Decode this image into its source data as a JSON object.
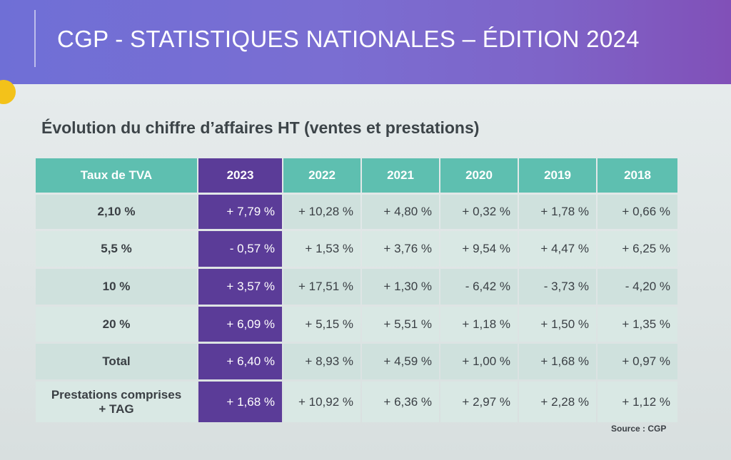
{
  "header": {
    "title": "CGP - STATISTIQUES NATIONALES – ÉDITION 2024"
  },
  "section": {
    "subtitle": "Évolution du chiffre d’affaires HT (ventes et prestations)"
  },
  "table": {
    "columns": [
      "Taux  de TVA",
      "2023",
      "2022",
      "2021",
      "2020",
      "2019",
      "2018"
    ],
    "rows": [
      {
        "label": "2,10 %",
        "values": [
          "+ 7,79 %",
          "+ 10,28 %",
          "+ 4,80 %",
          "+ 0,32 %",
          "+ 1,78 %",
          "+ 0,66 %"
        ]
      },
      {
        "label": "5,5 %",
        "values": [
          "- 0,57 %",
          "+ 1,53 %",
          "+ 3,76 %",
          "+ 9,54 %",
          "+ 4,47 %",
          "+ 6,25 %"
        ]
      },
      {
        "label": "10 %",
        "values": [
          "+ 3,57 %",
          "+ 17,51 %",
          "+ 1,30 %",
          "- 6,42 %",
          "- 3,73 %",
          "- 4,20 %"
        ]
      },
      {
        "label": "20 %",
        "values": [
          "+ 6,09 %",
          "+ 5,15 %",
          "+ 5,51 %",
          "+ 1,18 %",
          "+ 1,50 %",
          "+ 1,35 %"
        ]
      },
      {
        "label": "Total",
        "values": [
          "+ 6,40 %",
          "+ 8,93 %",
          "+ 4,59 %",
          "+ 1,00 %",
          "+ 1,68 %",
          "+ 0,97 %"
        ]
      },
      {
        "label_line1": "Prestations comprises",
        "label_line2": "+ TAG",
        "values": [
          "+ 1,68 %",
          "+ 10,92 %",
          "+ 6,36 %",
          "+ 2,97 %",
          "+ 2,28 %",
          "+ 1,12 %"
        ]
      }
    ]
  },
  "footer": {
    "source": "Source : CGP"
  },
  "colors": {
    "banner": "#7a6ed2",
    "header_teal": "#5ebfb0",
    "highlight_purple": "#5b3c98",
    "cell_light": "#cfe1dd",
    "accent_dot": "#f3c21a"
  }
}
